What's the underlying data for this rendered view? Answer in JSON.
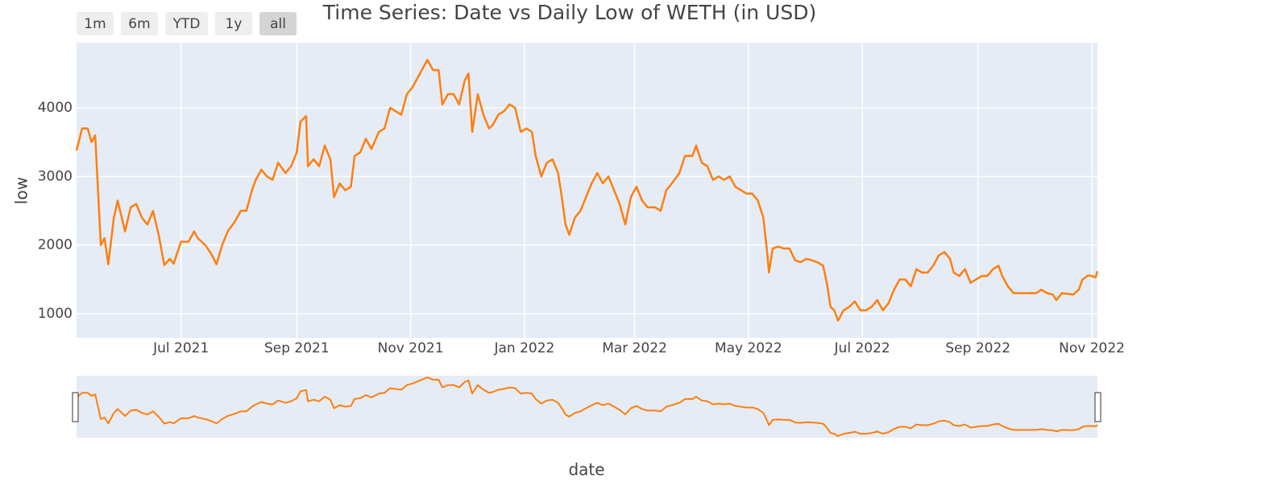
{
  "chart_data": {
    "type": "line",
    "title": "Time Series: Date vs Daily Low of WETH (in USD)",
    "x_label": "date",
    "y_label": "low",
    "range_buttons": [
      "1m",
      "6m",
      "YTD",
      "1y",
      "all"
    ],
    "x": [
      "2021-05-06",
      "2021-05-09",
      "2021-05-12",
      "2021-05-14",
      "2021-05-16",
      "2021-05-19",
      "2021-05-21",
      "2021-05-23",
      "2021-05-26",
      "2021-05-28",
      "2021-06-01",
      "2021-06-04",
      "2021-06-07",
      "2021-06-10",
      "2021-06-13",
      "2021-06-16",
      "2021-06-19",
      "2021-06-22",
      "2021-06-25",
      "2021-06-27",
      "2021-07-01",
      "2021-07-05",
      "2021-07-08",
      "2021-07-10",
      "2021-07-14",
      "2021-07-17",
      "2021-07-20",
      "2021-07-23",
      "2021-07-26",
      "2021-07-30",
      "2021-08-02",
      "2021-08-05",
      "2021-08-08",
      "2021-08-10",
      "2021-08-13",
      "2021-08-16",
      "2021-08-19",
      "2021-08-22",
      "2021-08-26",
      "2021-08-29",
      "2021-09-01",
      "2021-09-03",
      "2021-09-06",
      "2021-09-07",
      "2021-09-10",
      "2021-09-13",
      "2021-09-16",
      "2021-09-19",
      "2021-09-21",
      "2021-09-24",
      "2021-09-27",
      "2021-09-30",
      "2021-10-02",
      "2021-10-05",
      "2021-10-08",
      "2021-10-11",
      "2021-10-15",
      "2021-10-18",
      "2021-10-21",
      "2021-10-24",
      "2021-10-27",
      "2021-10-30",
      "2021-11-02",
      "2021-11-05",
      "2021-11-08",
      "2021-11-10",
      "2021-11-13",
      "2021-11-16",
      "2021-11-18",
      "2021-11-21",
      "2021-11-24",
      "2021-11-27",
      "2021-11-30",
      "2021-12-02",
      "2021-12-04",
      "2021-12-07",
      "2021-12-10",
      "2021-12-13",
      "2021-12-15",
      "2021-12-18",
      "2021-12-21",
      "2021-12-24",
      "2021-12-27",
      "2021-12-30",
      "2022-01-02",
      "2022-01-05",
      "2022-01-07",
      "2022-01-10",
      "2022-01-13",
      "2022-01-16",
      "2022-01-19",
      "2022-01-21",
      "2022-01-23",
      "2022-01-25",
      "2022-01-28",
      "2022-01-31",
      "2022-02-03",
      "2022-02-06",
      "2022-02-09",
      "2022-02-12",
      "2022-02-15",
      "2022-02-18",
      "2022-02-21",
      "2022-02-24",
      "2022-02-27",
      "2022-03-02",
      "2022-03-05",
      "2022-03-08",
      "2022-03-12",
      "2022-03-15",
      "2022-03-18",
      "2022-03-21",
      "2022-03-25",
      "2022-03-28",
      "2022-04-01",
      "2022-04-03",
      "2022-04-06",
      "2022-04-09",
      "2022-04-12",
      "2022-04-15",
      "2022-04-18",
      "2022-04-21",
      "2022-04-24",
      "2022-04-27",
      "2022-04-30",
      "2022-05-03",
      "2022-05-06",
      "2022-05-09",
      "2022-05-11",
      "2022-05-12",
      "2022-05-14",
      "2022-05-17",
      "2022-05-20",
      "2022-05-23",
      "2022-05-26",
      "2022-05-29",
      "2022-06-01",
      "2022-06-04",
      "2022-06-07",
      "2022-06-10",
      "2022-06-12",
      "2022-06-14",
      "2022-06-16",
      "2022-06-18",
      "2022-06-21",
      "2022-06-24",
      "2022-06-27",
      "2022-06-30",
      "2022-07-03",
      "2022-07-06",
      "2022-07-09",
      "2022-07-12",
      "2022-07-15",
      "2022-07-18",
      "2022-07-21",
      "2022-07-24",
      "2022-07-27",
      "2022-07-30",
      "2022-08-02",
      "2022-08-05",
      "2022-08-08",
      "2022-08-11",
      "2022-08-14",
      "2022-08-17",
      "2022-08-19",
      "2022-08-22",
      "2022-08-25",
      "2022-08-28",
      "2022-08-31",
      "2022-09-03",
      "2022-09-06",
      "2022-09-09",
      "2022-09-12",
      "2022-09-14",
      "2022-09-17",
      "2022-09-20",
      "2022-09-23",
      "2022-09-26",
      "2022-09-29",
      "2022-10-02",
      "2022-10-05",
      "2022-10-08",
      "2022-10-11",
      "2022-10-13",
      "2022-10-16",
      "2022-10-19",
      "2022-10-22",
      "2022-10-25",
      "2022-10-27",
      "2022-10-30",
      "2022-11-01",
      "2022-11-03",
      "2022-11-04"
    ],
    "series": [
      {
        "name": "low",
        "color": "#ff7f0e",
        "values": [
          3380,
          3700,
          3700,
          3500,
          3600,
          2000,
          2100,
          1720,
          2400,
          2650,
          2200,
          2550,
          2600,
          2400,
          2300,
          2500,
          2150,
          1710,
          1800,
          1730,
          2050,
          2050,
          2200,
          2100,
          2000,
          1880,
          1720,
          2000,
          2200,
          2350,
          2500,
          2500,
          2800,
          2950,
          3100,
          3000,
          2950,
          3200,
          3050,
          3150,
          3350,
          3800,
          3880,
          3150,
          3250,
          3150,
          3450,
          3250,
          2700,
          2900,
          2800,
          2850,
          3300,
          3350,
          3550,
          3400,
          3650,
          3700,
          4000,
          3950,
          3900,
          4200,
          4300,
          4450,
          4600,
          4700,
          4550,
          4550,
          4050,
          4200,
          4200,
          4050,
          4400,
          4500,
          3650,
          4200,
          3900,
          3700,
          3750,
          3900,
          3950,
          4050,
          4000,
          3650,
          3700,
          3650,
          3300,
          3000,
          3200,
          3250,
          3050,
          2700,
          2300,
          2150,
          2400,
          2500,
          2700,
          2900,
          3050,
          2900,
          3000,
          2800,
          2600,
          2300,
          2700,
          2850,
          2650,
          2550,
          2550,
          2500,
          2800,
          2900,
          3050,
          3300,
          3300,
          3450,
          3200,
          3150,
          2950,
          3000,
          2950,
          3000,
          2850,
          2800,
          2750,
          2750,
          2650,
          2400,
          1900,
          1600,
          1950,
          1980,
          1950,
          1950,
          1780,
          1750,
          1800,
          1780,
          1750,
          1700,
          1450,
          1100,
          1050,
          900,
          1050,
          1100,
          1180,
          1050,
          1050,
          1100,
          1200,
          1050,
          1150,
          1350,
          1500,
          1500,
          1400,
          1650,
          1600,
          1600,
          1700,
          1850,
          1900,
          1800,
          1600,
          1550,
          1650,
          1450,
          1500,
          1550,
          1550,
          1650,
          1700,
          1550,
          1400,
          1300,
          1300,
          1300,
          1300,
          1300,
          1350,
          1300,
          1280,
          1200,
          1300,
          1290,
          1280,
          1350,
          1500,
          1560,
          1550,
          1530,
          1620
        ]
      }
    ],
    "xlim": [
      "2021-05-06",
      "2022-11-04"
    ],
    "xticks": [
      {
        "value": "2021-07-01",
        "label": "Jul 2021"
      },
      {
        "value": "2021-09-01",
        "label": "Sep 2021"
      },
      {
        "value": "2021-11-01",
        "label": "Nov 2021"
      },
      {
        "value": "2022-01-01",
        "label": "Jan 2022"
      },
      {
        "value": "2022-03-01",
        "label": "Mar 2022"
      },
      {
        "value": "2022-05-01",
        "label": "May 2022"
      },
      {
        "value": "2022-07-01",
        "label": "Jul 2022"
      },
      {
        "value": "2022-09-01",
        "label": "Sep 2022"
      },
      {
        "value": "2022-11-01",
        "label": "Nov 2022"
      }
    ],
    "ylim": [
      648,
      4950
    ],
    "yticks": [
      1000,
      2000,
      3000,
      4000
    ],
    "grid": true
  }
}
